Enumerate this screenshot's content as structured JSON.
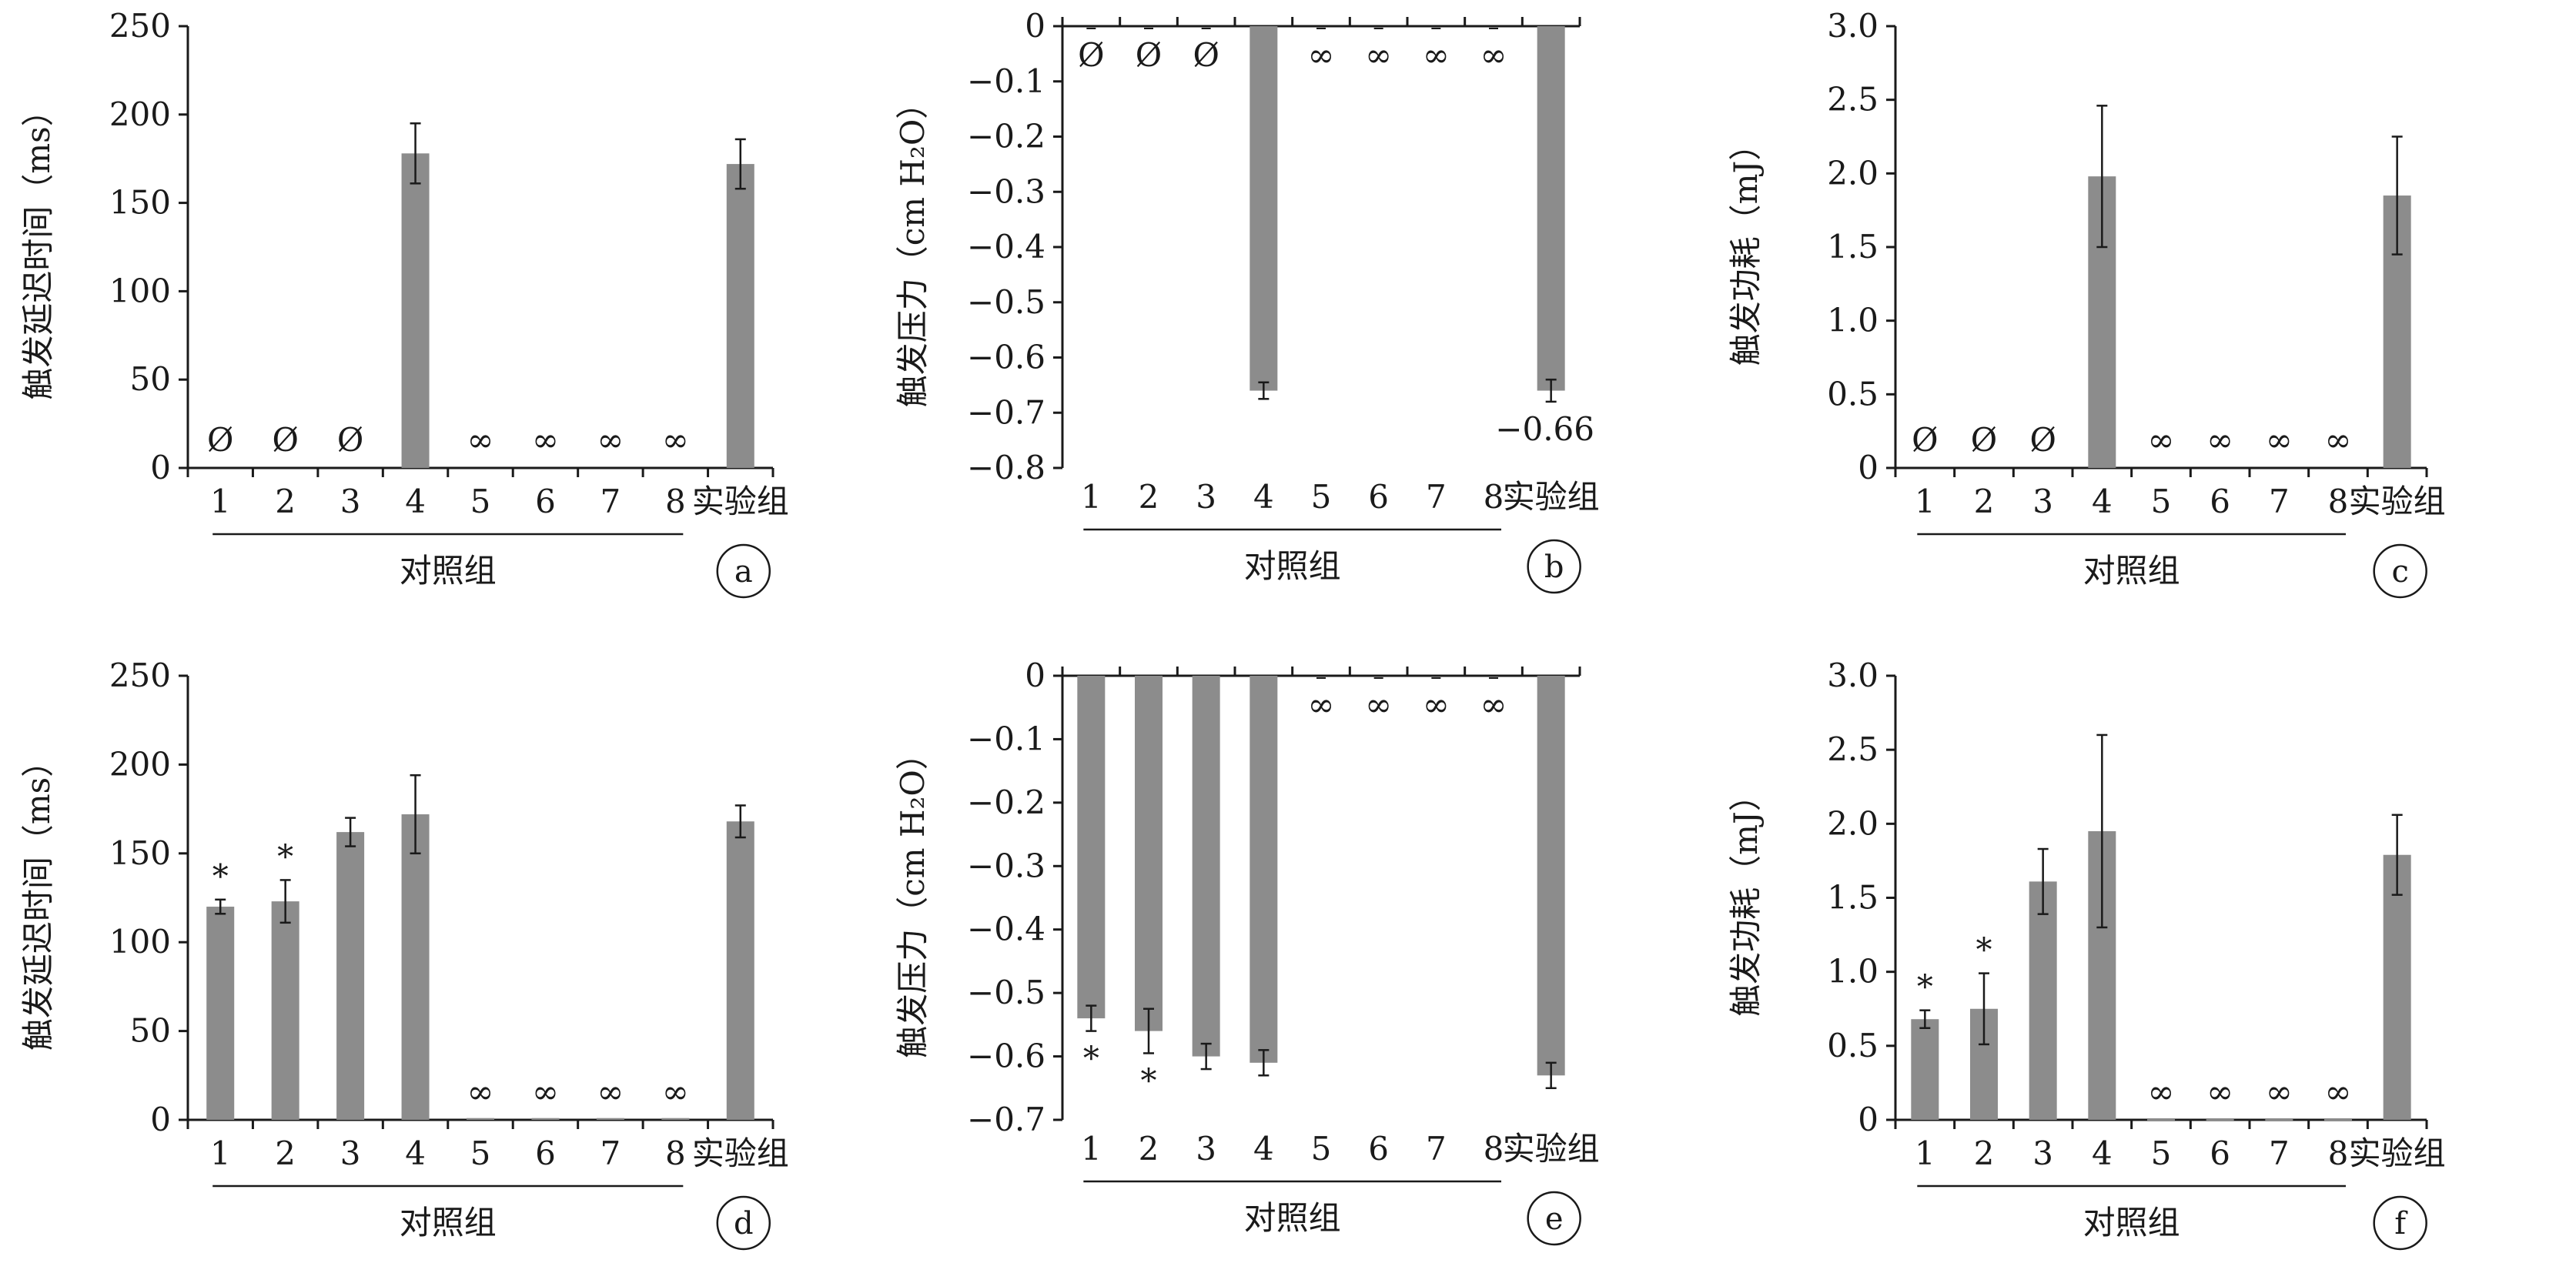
{
  "colors": {
    "bar": "#8c8c8c",
    "axis": "#1a1a1a"
  },
  "chart_data": [
    {
      "id": "a",
      "type": "bar",
      "panel_label": "a",
      "ylabel": "触发延迟时间（ms）",
      "group_label": "对照组",
      "categories": [
        "1",
        "2",
        "3",
        "4",
        "5",
        "6",
        "7",
        "8",
        "实验组"
      ],
      "ylim": [
        0,
        250
      ],
      "yticks": [
        0,
        50,
        100,
        150,
        200,
        250
      ],
      "ytick_labels": [
        "0",
        "50",
        "100",
        "150",
        "200",
        "250"
      ],
      "values": [
        null,
        null,
        null,
        178,
        null,
        null,
        null,
        null,
        172
      ],
      "errors": [
        0,
        0,
        0,
        17,
        0,
        0,
        0,
        0,
        14
      ],
      "value_marks": [
        "Ø",
        "Ø",
        "Ø",
        "",
        "∞",
        "∞",
        "∞",
        "∞",
        ""
      ],
      "sig_marks": [
        "",
        "",
        "",
        "",
        "",
        "",
        "",
        "",
        ""
      ],
      "annotation": "",
      "grid": false
    },
    {
      "id": "b",
      "type": "bar",
      "panel_label": "b",
      "ylabel": "触发压力（cm H₂O）",
      "group_label": "对照组",
      "categories": [
        "1",
        "2",
        "3",
        "4",
        "5",
        "6",
        "7",
        "8",
        "实验组"
      ],
      "ylim": [
        -0.8,
        0
      ],
      "yticks": [
        0,
        -0.1,
        -0.2,
        -0.3,
        -0.4,
        -0.5,
        -0.6,
        -0.7,
        -0.8
      ],
      "ytick_labels": [
        "0",
        "−0.1",
        "−0.2",
        "−0.3",
        "−0.4",
        "−0.5",
        "−0.6",
        "−0.7",
        "−0.8"
      ],
      "values": [
        0,
        0,
        0,
        -0.66,
        0,
        0,
        0,
        0,
        -0.66
      ],
      "errors": [
        0,
        0,
        0,
        0.015,
        0,
        0,
        0,
        0,
        0.02
      ],
      "value_marks": [
        "Ø",
        "Ø",
        "Ø",
        "",
        "∞",
        "∞",
        "∞",
        "∞",
        ""
      ],
      "sig_marks": [
        "",
        "",
        "",
        "",
        "",
        "",
        "",
        "",
        ""
      ],
      "annotation": "−0.66",
      "grid": false
    },
    {
      "id": "c",
      "type": "bar",
      "panel_label": "c",
      "ylabel": "触发功耗（mJ）",
      "group_label": "对照组",
      "categories": [
        "1",
        "2",
        "3",
        "4",
        "5",
        "6",
        "7",
        "8",
        "实验组"
      ],
      "ylim": [
        0,
        3.0
      ],
      "yticks": [
        0,
        0.5,
        1.0,
        1.5,
        2.0,
        2.5,
        3.0
      ],
      "ytick_labels": [
        "0",
        "0.5",
        "1.0",
        "1.5",
        "2.0",
        "2.5",
        "3.0"
      ],
      "values": [
        null,
        null,
        null,
        1.98,
        null,
        null,
        null,
        null,
        1.85
      ],
      "errors": [
        0,
        0,
        0,
        0.48,
        0,
        0,
        0,
        0,
        0.4
      ],
      "value_marks": [
        "Ø",
        "Ø",
        "Ø",
        "",
        "∞",
        "∞",
        "∞",
        "∞",
        ""
      ],
      "sig_marks": [
        "",
        "",
        "",
        "",
        "",
        "",
        "",
        "",
        ""
      ],
      "annotation": "",
      "grid": false
    },
    {
      "id": "d",
      "type": "bar",
      "panel_label": "d",
      "ylabel": "触发延迟时间（ms）",
      "group_label": "对照组",
      "categories": [
        "1",
        "2",
        "3",
        "4",
        "5",
        "6",
        "7",
        "8",
        "实验组"
      ],
      "ylim": [
        0,
        250
      ],
      "yticks": [
        0,
        50,
        100,
        150,
        200,
        250
      ],
      "ytick_labels": [
        "0",
        "50",
        "100",
        "150",
        "200",
        "250"
      ],
      "values": [
        120,
        123,
        162,
        172,
        1,
        1,
        1,
        1,
        168
      ],
      "errors": [
        4,
        12,
        8,
        22,
        0,
        0,
        0,
        0,
        9
      ],
      "value_marks": [
        "",
        "",
        "",
        "",
        "∞",
        "∞",
        "∞",
        "∞",
        ""
      ],
      "sig_marks": [
        "*",
        "*",
        "",
        "",
        "",
        "",
        "",
        "",
        ""
      ],
      "annotation": "",
      "grid": false
    },
    {
      "id": "e",
      "type": "bar",
      "panel_label": "e",
      "ylabel": "触发压力（cm H₂O）",
      "group_label": "对照组",
      "categories": [
        "1",
        "2",
        "3",
        "4",
        "5",
        "6",
        "7",
        "8",
        "实验组"
      ],
      "ylim": [
        -0.7,
        0
      ],
      "yticks": [
        0,
        -0.1,
        -0.2,
        -0.3,
        -0.4,
        -0.5,
        -0.6,
        -0.7
      ],
      "ytick_labels": [
        "0",
        "−0.1",
        "−0.2",
        "−0.3",
        "−0.4",
        "−0.5",
        "−0.6",
        "−0.7"
      ],
      "values": [
        -0.54,
        -0.56,
        -0.6,
        -0.61,
        0,
        0,
        0,
        0,
        -0.63
      ],
      "errors": [
        0.02,
        0.035,
        0.02,
        0.02,
        0,
        0,
        0,
        0,
        0.02
      ],
      "value_marks": [
        "",
        "",
        "",
        "",
        "∞",
        "∞",
        "∞",
        "∞",
        ""
      ],
      "sig_marks": [
        "*",
        "*",
        "",
        "",
        "",
        "",
        "",
        "",
        ""
      ],
      "annotation": "",
      "grid": false
    },
    {
      "id": "f",
      "type": "bar",
      "panel_label": "f",
      "ylabel": "触发功耗（mJ）",
      "group_label": "对照组",
      "categories": [
        "1",
        "2",
        "3",
        "4",
        "5",
        "6",
        "7",
        "8",
        "实验组"
      ],
      "ylim": [
        0,
        3.0
      ],
      "yticks": [
        0,
        0.5,
        1.0,
        1.5,
        2.0,
        2.5,
        3.0
      ],
      "ytick_labels": [
        "0",
        "0.5",
        "1.0",
        "1.5",
        "2.0",
        "2.5",
        "3.0"
      ],
      "values": [
        0.68,
        0.75,
        1.61,
        1.95,
        0.005,
        0.005,
        0.005,
        0.005,
        1.79
      ],
      "errors": [
        0.06,
        0.24,
        0.22,
        0.65,
        0,
        0,
        0,
        0,
        0.27
      ],
      "value_marks": [
        "",
        "",
        "",
        "",
        "∞",
        "∞",
        "∞",
        "∞",
        ""
      ],
      "sig_marks": [
        "*",
        "*",
        "",
        "",
        "",
        "",
        "",
        "",
        ""
      ],
      "annotation": "",
      "grid": false
    }
  ]
}
